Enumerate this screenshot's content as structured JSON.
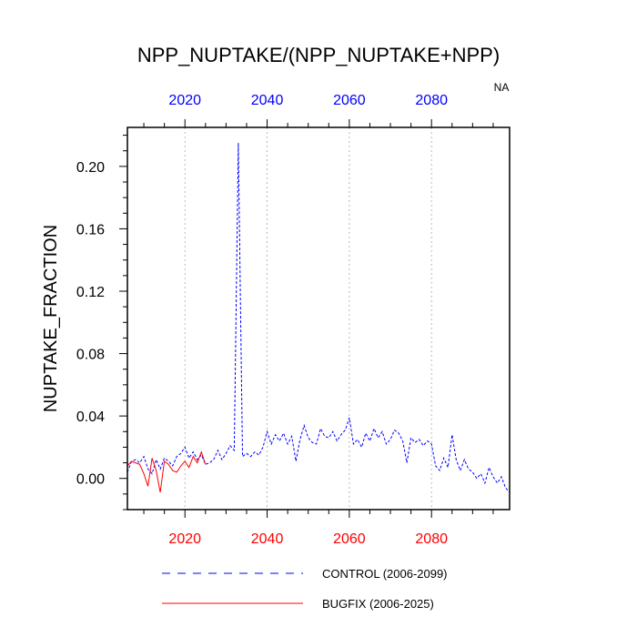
{
  "chart_data": {
    "type": "line",
    "title": "NPP_NUPTAKE/(NPP_NUPTAKE+NPP)",
    "corner_label": "NA",
    "xlabel": "",
    "ylabel": "NUPTAKE_FRACTION",
    "xlim": [
      2006,
      2099
    ],
    "ylim": [
      -0.02,
      0.225
    ],
    "x_ticks": [
      2020,
      2040,
      2060,
      2080
    ],
    "x_tick_labels": [
      "2020",
      "2040",
      "2060",
      "2080"
    ],
    "y_ticks": [
      0.0,
      0.04,
      0.08,
      0.12,
      0.16,
      0.2
    ],
    "y_tick_labels": [
      "0.00",
      "0.04",
      "0.08",
      "0.12",
      "0.16",
      "0.20"
    ],
    "grid": "vertical dotted at x ticks",
    "bottom_tick_color": "#ff0000",
    "top_tick_color": "#0000ff",
    "series": [
      {
        "name": "CONTROL (2006-2099)",
        "color": "#0000ff",
        "style": "dashed",
        "x": [
          2006,
          2007,
          2008,
          2009,
          2010,
          2011,
          2012,
          2013,
          2014,
          2015,
          2016,
          2017,
          2018,
          2019,
          2020,
          2021,
          2022,
          2023,
          2024,
          2025,
          2026,
          2027,
          2028,
          2029,
          2030,
          2031,
          2032,
          2033,
          2034,
          2035,
          2036,
          2037,
          2038,
          2039,
          2040,
          2041,
          2042,
          2043,
          2044,
          2045,
          2046,
          2047,
          2048,
          2049,
          2050,
          2051,
          2052,
          2053,
          2054,
          2055,
          2056,
          2057,
          2058,
          2059,
          2060,
          2061,
          2062,
          2063,
          2064,
          2065,
          2066,
          2067,
          2068,
          2069,
          2070,
          2071,
          2072,
          2073,
          2074,
          2075,
          2076,
          2077,
          2078,
          2079,
          2080,
          2081,
          2082,
          2083,
          2084,
          2085,
          2086,
          2087,
          2088,
          2089,
          2090,
          2091,
          2092,
          2093,
          2094,
          2095,
          2096,
          2097,
          2098,
          2099
        ],
        "values": [
          0.004,
          0.011,
          0.012,
          0.01,
          0.014,
          0.006,
          0.003,
          0.012,
          0.006,
          0.013,
          0.011,
          0.008,
          0.014,
          0.016,
          0.02,
          0.013,
          0.017,
          0.012,
          0.015,
          0.009,
          0.01,
          0.012,
          0.018,
          0.012,
          0.016,
          0.021,
          0.018,
          0.215,
          0.014,
          0.016,
          0.014,
          0.017,
          0.015,
          0.02,
          0.03,
          0.022,
          0.028,
          0.024,
          0.029,
          0.022,
          0.027,
          0.011,
          0.025,
          0.034,
          0.026,
          0.023,
          0.022,
          0.032,
          0.027,
          0.026,
          0.03,
          0.024,
          0.028,
          0.031,
          0.039,
          0.022,
          0.025,
          0.02,
          0.029,
          0.024,
          0.032,
          0.026,
          0.03,
          0.022,
          0.025,
          0.031,
          0.029,
          0.024,
          0.01,
          0.026,
          0.023,
          0.025,
          0.021,
          0.024,
          0.022,
          0.008,
          0.005,
          0.013,
          0.007,
          0.028,
          0.012,
          0.005,
          0.012,
          0.006,
          0.004,
          0.0,
          0.003,
          -0.003,
          0.007,
          0.001,
          -0.003,
          0.001,
          -0.006,
          -0.009
        ]
      },
      {
        "name": "BUGFIX (2006-2025)",
        "color": "#ff0000",
        "style": "solid",
        "x": [
          2006,
          2007,
          2008,
          2009,
          2010,
          2011,
          2012,
          2013,
          2014,
          2015,
          2016,
          2017,
          2018,
          2019,
          2020,
          2021,
          2022,
          2023,
          2024,
          2025
        ],
        "values": [
          0.008,
          0.011,
          0.01,
          0.009,
          0.003,
          -0.005,
          0.013,
          0.005,
          -0.009,
          0.011,
          0.009,
          0.005,
          0.004,
          0.008,
          0.011,
          0.007,
          0.014,
          0.01,
          0.017,
          0.009
        ]
      }
    ]
  },
  "legend": {
    "entries": [
      {
        "label": "CONTROL (2006-2099)",
        "color": "#0000ff",
        "style": "dashed"
      },
      {
        "label": "BUGFIX (2006-2025)",
        "color": "#ff0000",
        "style": "solid"
      }
    ]
  }
}
